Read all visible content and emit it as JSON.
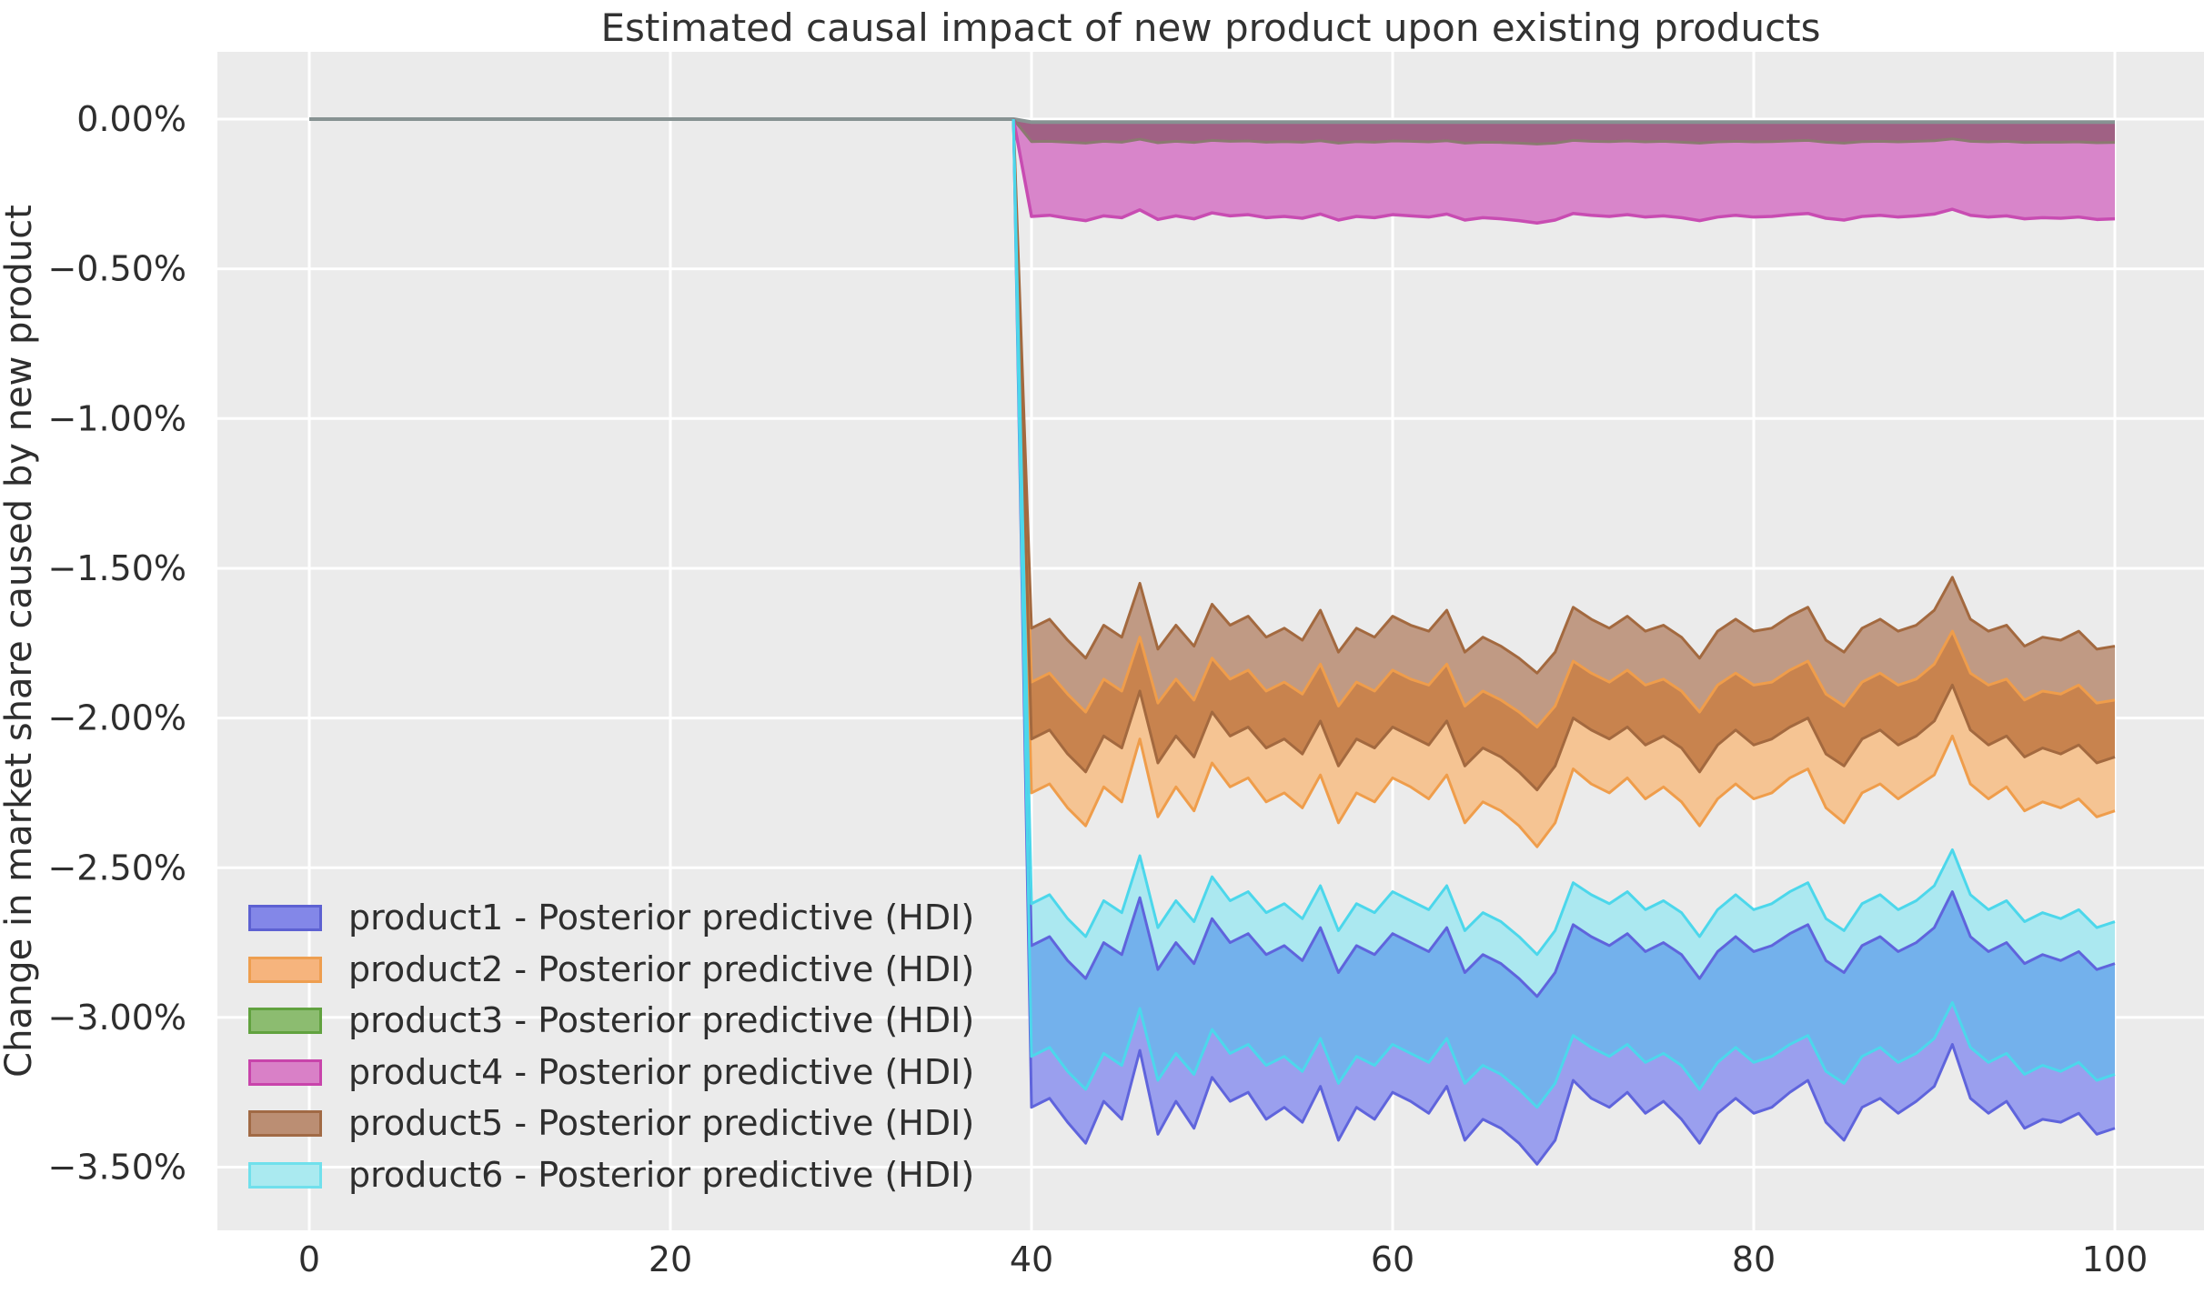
{
  "title": "Estimated causal impact of new product upon existing products",
  "y_axis": {
    "label": "Change in market share caused by new product",
    "ticks": [
      {
        "label": "0.00%",
        "value_pct": 0
      },
      {
        "label": "−0.50%",
        "value_pct": -0.5
      },
      {
        "label": "−1.00%",
        "value_pct": -1.0
      },
      {
        "label": "−1.50%",
        "value_pct": -1.5
      },
      {
        "label": "−2.00%",
        "value_pct": -2.0
      },
      {
        "label": "−2.50%",
        "value_pct": -2.5
      },
      {
        "label": "−3.00%",
        "value_pct": -3.0
      },
      {
        "label": "−3.50%",
        "value_pct": -3.5
      }
    ]
  },
  "x_axis": {
    "ticks": [
      {
        "label": "0",
        "value": 0
      },
      {
        "label": "20",
        "value": 20
      },
      {
        "label": "40",
        "value": 40
      },
      {
        "label": "60",
        "value": 60
      },
      {
        "label": "80",
        "value": 80
      },
      {
        "label": "100",
        "value": 100
      }
    ]
  },
  "colors": {
    "figure_bg": "#ffffff",
    "axes_bg": "#ebebeb",
    "grid": "#ffffff",
    "text": "#2e2e2e",
    "pre_line": "#879292"
  },
  "legend": {
    "items": [
      {
        "label": "product1 - Posterior predictive (HDI)",
        "fill": "#8387e8",
        "edge": "#5d61d2"
      },
      {
        "label": "product2 - Posterior predictive (HDI)",
        "fill": "#f6b47d",
        "edge": "#ee9e4f"
      },
      {
        "label": "product3 - Posterior predictive (HDI)",
        "fill": "#8cbc70",
        "edge": "#61a23f"
      },
      {
        "label": "product4 - Posterior predictive (HDI)",
        "fill": "#d980c7",
        "edge": "#c844ab"
      },
      {
        "label": "product5 - Posterior predictive (HDI)",
        "fill": "#bb8e73",
        "edge": "#a16a45"
      },
      {
        "label": "product6 - Posterior predictive (HDI)",
        "fill": "#aaeaf0",
        "edge": "#70e0ec"
      }
    ]
  },
  "chart_data": {
    "type": "area",
    "title": "Estimated causal impact of new product upon existing products",
    "xlabel": "",
    "ylabel": "Change in market share caused by new product",
    "x_range_shown": [
      -5,
      105
    ],
    "y_range_shown_pct": [
      -3.71,
      0.22
    ],
    "grid": true,
    "legend_position": "lower left",
    "intervention_x": 40,
    "pre_period": {
      "x_start": 0,
      "x_end": 39,
      "value_pct": 0,
      "note": "all six products flat at 0% before the new product launch"
    },
    "post_x": {
      "start": 40,
      "end": 100,
      "step": 1,
      "count": 61
    },
    "series": [
      {
        "name": "product1",
        "legend_label": "product1 - Posterior predictive (HDI)",
        "hdi_upper_pct": [
          -2.76,
          -2.73,
          -2.81,
          -2.87,
          -2.75,
          -2.79,
          -2.6,
          -2.84,
          -2.75,
          -2.82,
          -2.67,
          -2.75,
          -2.72,
          -2.79,
          -2.76,
          -2.81,
          -2.7,
          -2.85,
          -2.76,
          -2.79,
          -2.72,
          -2.75,
          -2.78,
          -2.7,
          -2.85,
          -2.79,
          -2.82,
          -2.87,
          -2.93,
          -2.85,
          -2.69,
          -2.73,
          -2.76,
          -2.72,
          -2.78,
          -2.75,
          -2.79,
          -2.87,
          -2.78,
          -2.73,
          -2.78,
          -2.76,
          -2.72,
          -2.69,
          -2.81,
          -2.85,
          -2.76,
          -2.73,
          -2.78,
          -2.75,
          -2.7,
          -2.58,
          -2.73,
          -2.78,
          -2.75,
          -2.82,
          -2.79,
          -2.81,
          -2.78,
          -2.84,
          -2.82
        ],
        "hdi_lower_pct": [
          -3.3,
          -3.27,
          -3.35,
          -3.42,
          -3.28,
          -3.34,
          -3.11,
          -3.39,
          -3.28,
          -3.37,
          -3.2,
          -3.28,
          -3.25,
          -3.34,
          -3.3,
          -3.35,
          -3.23,
          -3.41,
          -3.3,
          -3.34,
          -3.25,
          -3.28,
          -3.32,
          -3.23,
          -3.41,
          -3.34,
          -3.37,
          -3.42,
          -3.49,
          -3.41,
          -3.21,
          -3.27,
          -3.3,
          -3.25,
          -3.32,
          -3.28,
          -3.34,
          -3.42,
          -3.32,
          -3.27,
          -3.32,
          -3.3,
          -3.25,
          -3.21,
          -3.35,
          -3.41,
          -3.3,
          -3.27,
          -3.32,
          -3.28,
          -3.23,
          -3.09,
          -3.27,
          -3.32,
          -3.28,
          -3.37,
          -3.34,
          -3.35,
          -3.32,
          -3.39,
          -3.37
        ]
      },
      {
        "name": "product2",
        "legend_label": "product2 - Posterior predictive (HDI)",
        "hdi_upper_pct": [
          -1.88,
          -1.85,
          -1.92,
          -1.98,
          -1.87,
          -1.91,
          -1.73,
          -1.95,
          -1.87,
          -1.94,
          -1.8,
          -1.87,
          -1.84,
          -1.91,
          -1.88,
          -1.92,
          -1.82,
          -1.96,
          -1.88,
          -1.91,
          -1.84,
          -1.87,
          -1.89,
          -1.82,
          -1.96,
          -1.91,
          -1.94,
          -1.98,
          -2.03,
          -1.96,
          -1.81,
          -1.85,
          -1.88,
          -1.84,
          -1.89,
          -1.87,
          -1.91,
          -1.98,
          -1.89,
          -1.85,
          -1.89,
          -1.88,
          -1.84,
          -1.81,
          -1.92,
          -1.96,
          -1.88,
          -1.85,
          -1.89,
          -1.87,
          -1.82,
          -1.71,
          -1.85,
          -1.89,
          -1.87,
          -1.94,
          -1.91,
          -1.92,
          -1.89,
          -1.95,
          -1.94
        ],
        "hdi_lower_pct": [
          -2.25,
          -2.22,
          -2.3,
          -2.36,
          -2.23,
          -2.28,
          -2.07,
          -2.33,
          -2.23,
          -2.31,
          -2.15,
          -2.23,
          -2.2,
          -2.28,
          -2.25,
          -2.3,
          -2.19,
          -2.35,
          -2.25,
          -2.28,
          -2.2,
          -2.23,
          -2.27,
          -2.19,
          -2.35,
          -2.28,
          -2.31,
          -2.36,
          -2.43,
          -2.35,
          -2.17,
          -2.22,
          -2.25,
          -2.2,
          -2.27,
          -2.23,
          -2.28,
          -2.36,
          -2.27,
          -2.22,
          -2.27,
          -2.25,
          -2.2,
          -2.17,
          -2.3,
          -2.35,
          -2.25,
          -2.22,
          -2.27,
          -2.23,
          -2.19,
          -2.06,
          -2.22,
          -2.27,
          -2.23,
          -2.31,
          -2.28,
          -2.3,
          -2.27,
          -2.33,
          -2.31
        ]
      },
      {
        "name": "product3",
        "legend_label": "product3 - Posterior predictive (HDI)",
        "hdi_upper_pct": -0.01,
        "hdi_lower_pct": [
          -0.075,
          -0.074,
          -0.077,
          -0.08,
          -0.074,
          -0.077,
          -0.067,
          -0.079,
          -0.074,
          -0.078,
          -0.071,
          -0.074,
          -0.073,
          -0.077,
          -0.075,
          -0.077,
          -0.072,
          -0.08,
          -0.075,
          -0.077,
          -0.073,
          -0.074,
          -0.076,
          -0.072,
          -0.08,
          -0.077,
          -0.078,
          -0.08,
          -0.083,
          -0.08,
          -0.071,
          -0.074,
          -0.075,
          -0.073,
          -0.076,
          -0.074,
          -0.077,
          -0.08,
          -0.076,
          -0.074,
          -0.076,
          -0.075,
          -0.073,
          -0.071,
          -0.077,
          -0.08,
          -0.075,
          -0.074,
          -0.076,
          -0.074,
          -0.072,
          -0.066,
          -0.074,
          -0.076,
          -0.074,
          -0.078,
          -0.077,
          -0.077,
          -0.076,
          -0.079,
          -0.078
        ]
      },
      {
        "name": "product4",
        "legend_label": "product4 - Posterior predictive (HDI)",
        "hdi_upper_pct": -0.02,
        "hdi_lower_pct": [
          -0.325,
          -0.321,
          -0.331,
          -0.339,
          -0.323,
          -0.329,
          -0.303,
          -0.335,
          -0.323,
          -0.333,
          -0.313,
          -0.323,
          -0.319,
          -0.329,
          -0.325,
          -0.331,
          -0.317,
          -0.337,
          -0.325,
          -0.329,
          -0.319,
          -0.323,
          -0.327,
          -0.317,
          -0.337,
          -0.329,
          -0.333,
          -0.339,
          -0.347,
          -0.337,
          -0.315,
          -0.321,
          -0.325,
          -0.319,
          -0.327,
          -0.323,
          -0.329,
          -0.339,
          -0.327,
          -0.321,
          -0.327,
          -0.325,
          -0.319,
          -0.315,
          -0.331,
          -0.337,
          -0.325,
          -0.321,
          -0.327,
          -0.323,
          -0.317,
          -0.301,
          -0.321,
          -0.327,
          -0.323,
          -0.333,
          -0.329,
          -0.331,
          -0.327,
          -0.335,
          -0.333
        ]
      },
      {
        "name": "product5",
        "legend_label": "product5 - Posterior predictive (HDI)",
        "hdi_upper_pct": [
          -1.7,
          -1.67,
          -1.74,
          -1.8,
          -1.69,
          -1.73,
          -1.55,
          -1.77,
          -1.69,
          -1.76,
          -1.62,
          -1.69,
          -1.66,
          -1.73,
          -1.7,
          -1.74,
          -1.64,
          -1.78,
          -1.7,
          -1.73,
          -1.66,
          -1.69,
          -1.71,
          -1.64,
          -1.78,
          -1.73,
          -1.76,
          -1.8,
          -1.85,
          -1.78,
          -1.63,
          -1.67,
          -1.7,
          -1.66,
          -1.71,
          -1.69,
          -1.73,
          -1.8,
          -1.71,
          -1.67,
          -1.71,
          -1.7,
          -1.66,
          -1.63,
          -1.74,
          -1.78,
          -1.7,
          -1.67,
          -1.71,
          -1.69,
          -1.64,
          -1.53,
          -1.67,
          -1.71,
          -1.69,
          -1.76,
          -1.73,
          -1.74,
          -1.71,
          -1.77,
          -1.76
        ],
        "hdi_lower_pct": [
          -2.07,
          -2.04,
          -2.12,
          -2.18,
          -2.06,
          -2.1,
          -1.91,
          -2.15,
          -2.06,
          -2.13,
          -1.98,
          -2.06,
          -2.03,
          -2.1,
          -2.07,
          -2.12,
          -2.01,
          -2.16,
          -2.07,
          -2.1,
          -2.03,
          -2.06,
          -2.09,
          -2.01,
          -2.16,
          -2.1,
          -2.13,
          -2.18,
          -2.24,
          -2.16,
          -2.0,
          -2.04,
          -2.07,
          -2.03,
          -2.09,
          -2.06,
          -2.1,
          -2.18,
          -2.09,
          -2.04,
          -2.09,
          -2.07,
          -2.03,
          -2.0,
          -2.12,
          -2.16,
          -2.07,
          -2.04,
          -2.09,
          -2.06,
          -2.01,
          -1.89,
          -2.04,
          -2.09,
          -2.06,
          -2.13,
          -2.1,
          -2.12,
          -2.09,
          -2.15,
          -2.13
        ]
      },
      {
        "name": "product6",
        "legend_label": "product6 - Posterior predictive (HDI)",
        "hdi_upper_pct": [
          -2.62,
          -2.59,
          -2.67,
          -2.73,
          -2.61,
          -2.65,
          -2.46,
          -2.7,
          -2.61,
          -2.68,
          -2.53,
          -2.61,
          -2.58,
          -2.65,
          -2.62,
          -2.67,
          -2.56,
          -2.71,
          -2.62,
          -2.65,
          -2.58,
          -2.61,
          -2.64,
          -2.56,
          -2.71,
          -2.65,
          -2.68,
          -2.73,
          -2.79,
          -2.71,
          -2.55,
          -2.59,
          -2.62,
          -2.58,
          -2.64,
          -2.61,
          -2.65,
          -2.73,
          -2.64,
          -2.59,
          -2.64,
          -2.62,
          -2.58,
          -2.55,
          -2.67,
          -2.71,
          -2.62,
          -2.59,
          -2.64,
          -2.61,
          -2.56,
          -2.44,
          -2.59,
          -2.64,
          -2.61,
          -2.68,
          -2.65,
          -2.67,
          -2.64,
          -2.7,
          -2.68
        ],
        "hdi_lower_pct": [
          -3.13,
          -3.1,
          -3.18,
          -3.24,
          -3.12,
          -3.16,
          -2.97,
          -3.21,
          -3.12,
          -3.19,
          -3.04,
          -3.12,
          -3.09,
          -3.16,
          -3.13,
          -3.18,
          -3.07,
          -3.22,
          -3.13,
          -3.16,
          -3.09,
          -3.12,
          -3.15,
          -3.07,
          -3.22,
          -3.16,
          -3.19,
          -3.24,
          -3.3,
          -3.22,
          -3.06,
          -3.1,
          -3.13,
          -3.09,
          -3.15,
          -3.12,
          -3.16,
          -3.24,
          -3.15,
          -3.1,
          -3.15,
          -3.13,
          -3.09,
          -3.06,
          -3.18,
          -3.22,
          -3.13,
          -3.1,
          -3.15,
          -3.12,
          -3.07,
          -2.95,
          -3.1,
          -3.15,
          -3.12,
          -3.19,
          -3.16,
          -3.18,
          -3.15,
          -3.21,
          -3.19
        ]
      }
    ],
    "regions": [
      {
        "name": "green-pink-overlap",
        "fill": "#a06184",
        "top": [
          "product3",
          "upper"
        ],
        "bottom": [
          "product3",
          "lower"
        ]
      },
      {
        "name": "pink-only",
        "fill": "#d885ca",
        "top": [
          "product3",
          "lower"
        ],
        "bottom": [
          "product4",
          "lower"
        ]
      },
      {
        "name": "brown-only",
        "fill": "#c09a84",
        "top": [
          "product5",
          "upper"
        ],
        "bottom": [
          "product2",
          "upper"
        ]
      },
      {
        "name": "brown-orange-overlap",
        "fill": "#c8834e",
        "top": [
          "product2",
          "upper"
        ],
        "bottom": [
          "product5",
          "lower"
        ]
      },
      {
        "name": "orange-only",
        "fill": "#f5c493",
        "top": [
          "product5",
          "lower"
        ],
        "bottom": [
          "product2",
          "lower"
        ]
      },
      {
        "name": "cyan-only",
        "fill": "#abe8f0",
        "top": [
          "product6",
          "upper"
        ],
        "bottom": [
          "product1",
          "upper"
        ]
      },
      {
        "name": "cyan-purple-overlap",
        "fill": "#73b1ec",
        "top": [
          "product1",
          "upper"
        ],
        "bottom": [
          "product6",
          "lower"
        ]
      },
      {
        "name": "purple-only",
        "fill": "#9a9fee",
        "top": [
          "product6",
          "lower"
        ],
        "bottom": [
          "product1",
          "lower"
        ]
      }
    ],
    "edge_lines": [
      {
        "series": "product3",
        "bound": "upper",
        "stroke": "#879292",
        "width": 4,
        "with_pre": true
      },
      {
        "series": "product3",
        "bound": "lower",
        "stroke": "#8b7a70",
        "width": 3,
        "with_pre": false
      },
      {
        "series": "product4",
        "bound": "lower",
        "stroke": "#c84cb2",
        "width": 3.5,
        "with_pre": false
      },
      {
        "series": "product2",
        "bound": "upper",
        "stroke": "#ef9d4b",
        "width": 3,
        "with_pre": false
      },
      {
        "series": "product2",
        "bound": "lower",
        "stroke": "#ef9d4b",
        "width": 3,
        "with_pre": false
      },
      {
        "series": "product5",
        "bound": "upper",
        "stroke": "#a3693f",
        "width": 3,
        "with_pre": false
      },
      {
        "series": "product5",
        "bound": "lower",
        "stroke": "#a3693f",
        "width": 3,
        "with_pre": false
      },
      {
        "series": "product1",
        "bound": "upper",
        "stroke": "#5f64dc",
        "width": 3,
        "with_pre": false
      },
      {
        "series": "product1",
        "bound": "lower",
        "stroke": "#5f64dc",
        "width": 3,
        "with_pre": false
      },
      {
        "series": "product6",
        "bound": "upper",
        "stroke": "#4cd7eb",
        "width": 3,
        "with_pre": false
      },
      {
        "series": "product6",
        "bound": "lower",
        "stroke": "#4cd7eb",
        "width": 3,
        "with_pre": false
      }
    ]
  }
}
